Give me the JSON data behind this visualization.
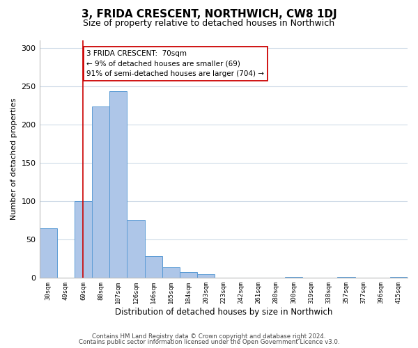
{
  "title": "3, FRIDA CRESCENT, NORTHWICH, CW8 1DJ",
  "subtitle": "Size of property relative to detached houses in Northwich",
  "xlabel": "Distribution of detached houses by size in Northwich",
  "ylabel": "Number of detached properties",
  "bar_labels": [
    "30sqm",
    "49sqm",
    "69sqm",
    "88sqm",
    "107sqm",
    "126sqm",
    "146sqm",
    "165sqm",
    "184sqm",
    "203sqm",
    "223sqm",
    "242sqm",
    "261sqm",
    "280sqm",
    "300sqm",
    "319sqm",
    "338sqm",
    "357sqm",
    "377sqm",
    "396sqm",
    "415sqm"
  ],
  "bar_values": [
    65,
    0,
    100,
    223,
    243,
    76,
    28,
    14,
    8,
    5,
    0,
    0,
    0,
    0,
    1,
    0,
    0,
    1,
    0,
    0,
    1
  ],
  "bar_color": "#aec6e8",
  "bar_edge_color": "#5b9bd5",
  "vline_x_index": 2,
  "vline_color": "#cc0000",
  "annotation_lines": [
    "3 FRIDA CRESCENT:  70sqm",
    "← 9% of detached houses are smaller (69)",
    "91% of semi-detached houses are larger (704) →"
  ],
  "ylim": [
    0,
    310
  ],
  "yticks": [
    0,
    50,
    100,
    150,
    200,
    250,
    300
  ],
  "footer1": "Contains HM Land Registry data © Crown copyright and database right 2024.",
  "footer2": "Contains public sector information licensed under the Open Government Licence v3.0.",
  "background_color": "#ffffff",
  "grid_color": "#d0dce8"
}
